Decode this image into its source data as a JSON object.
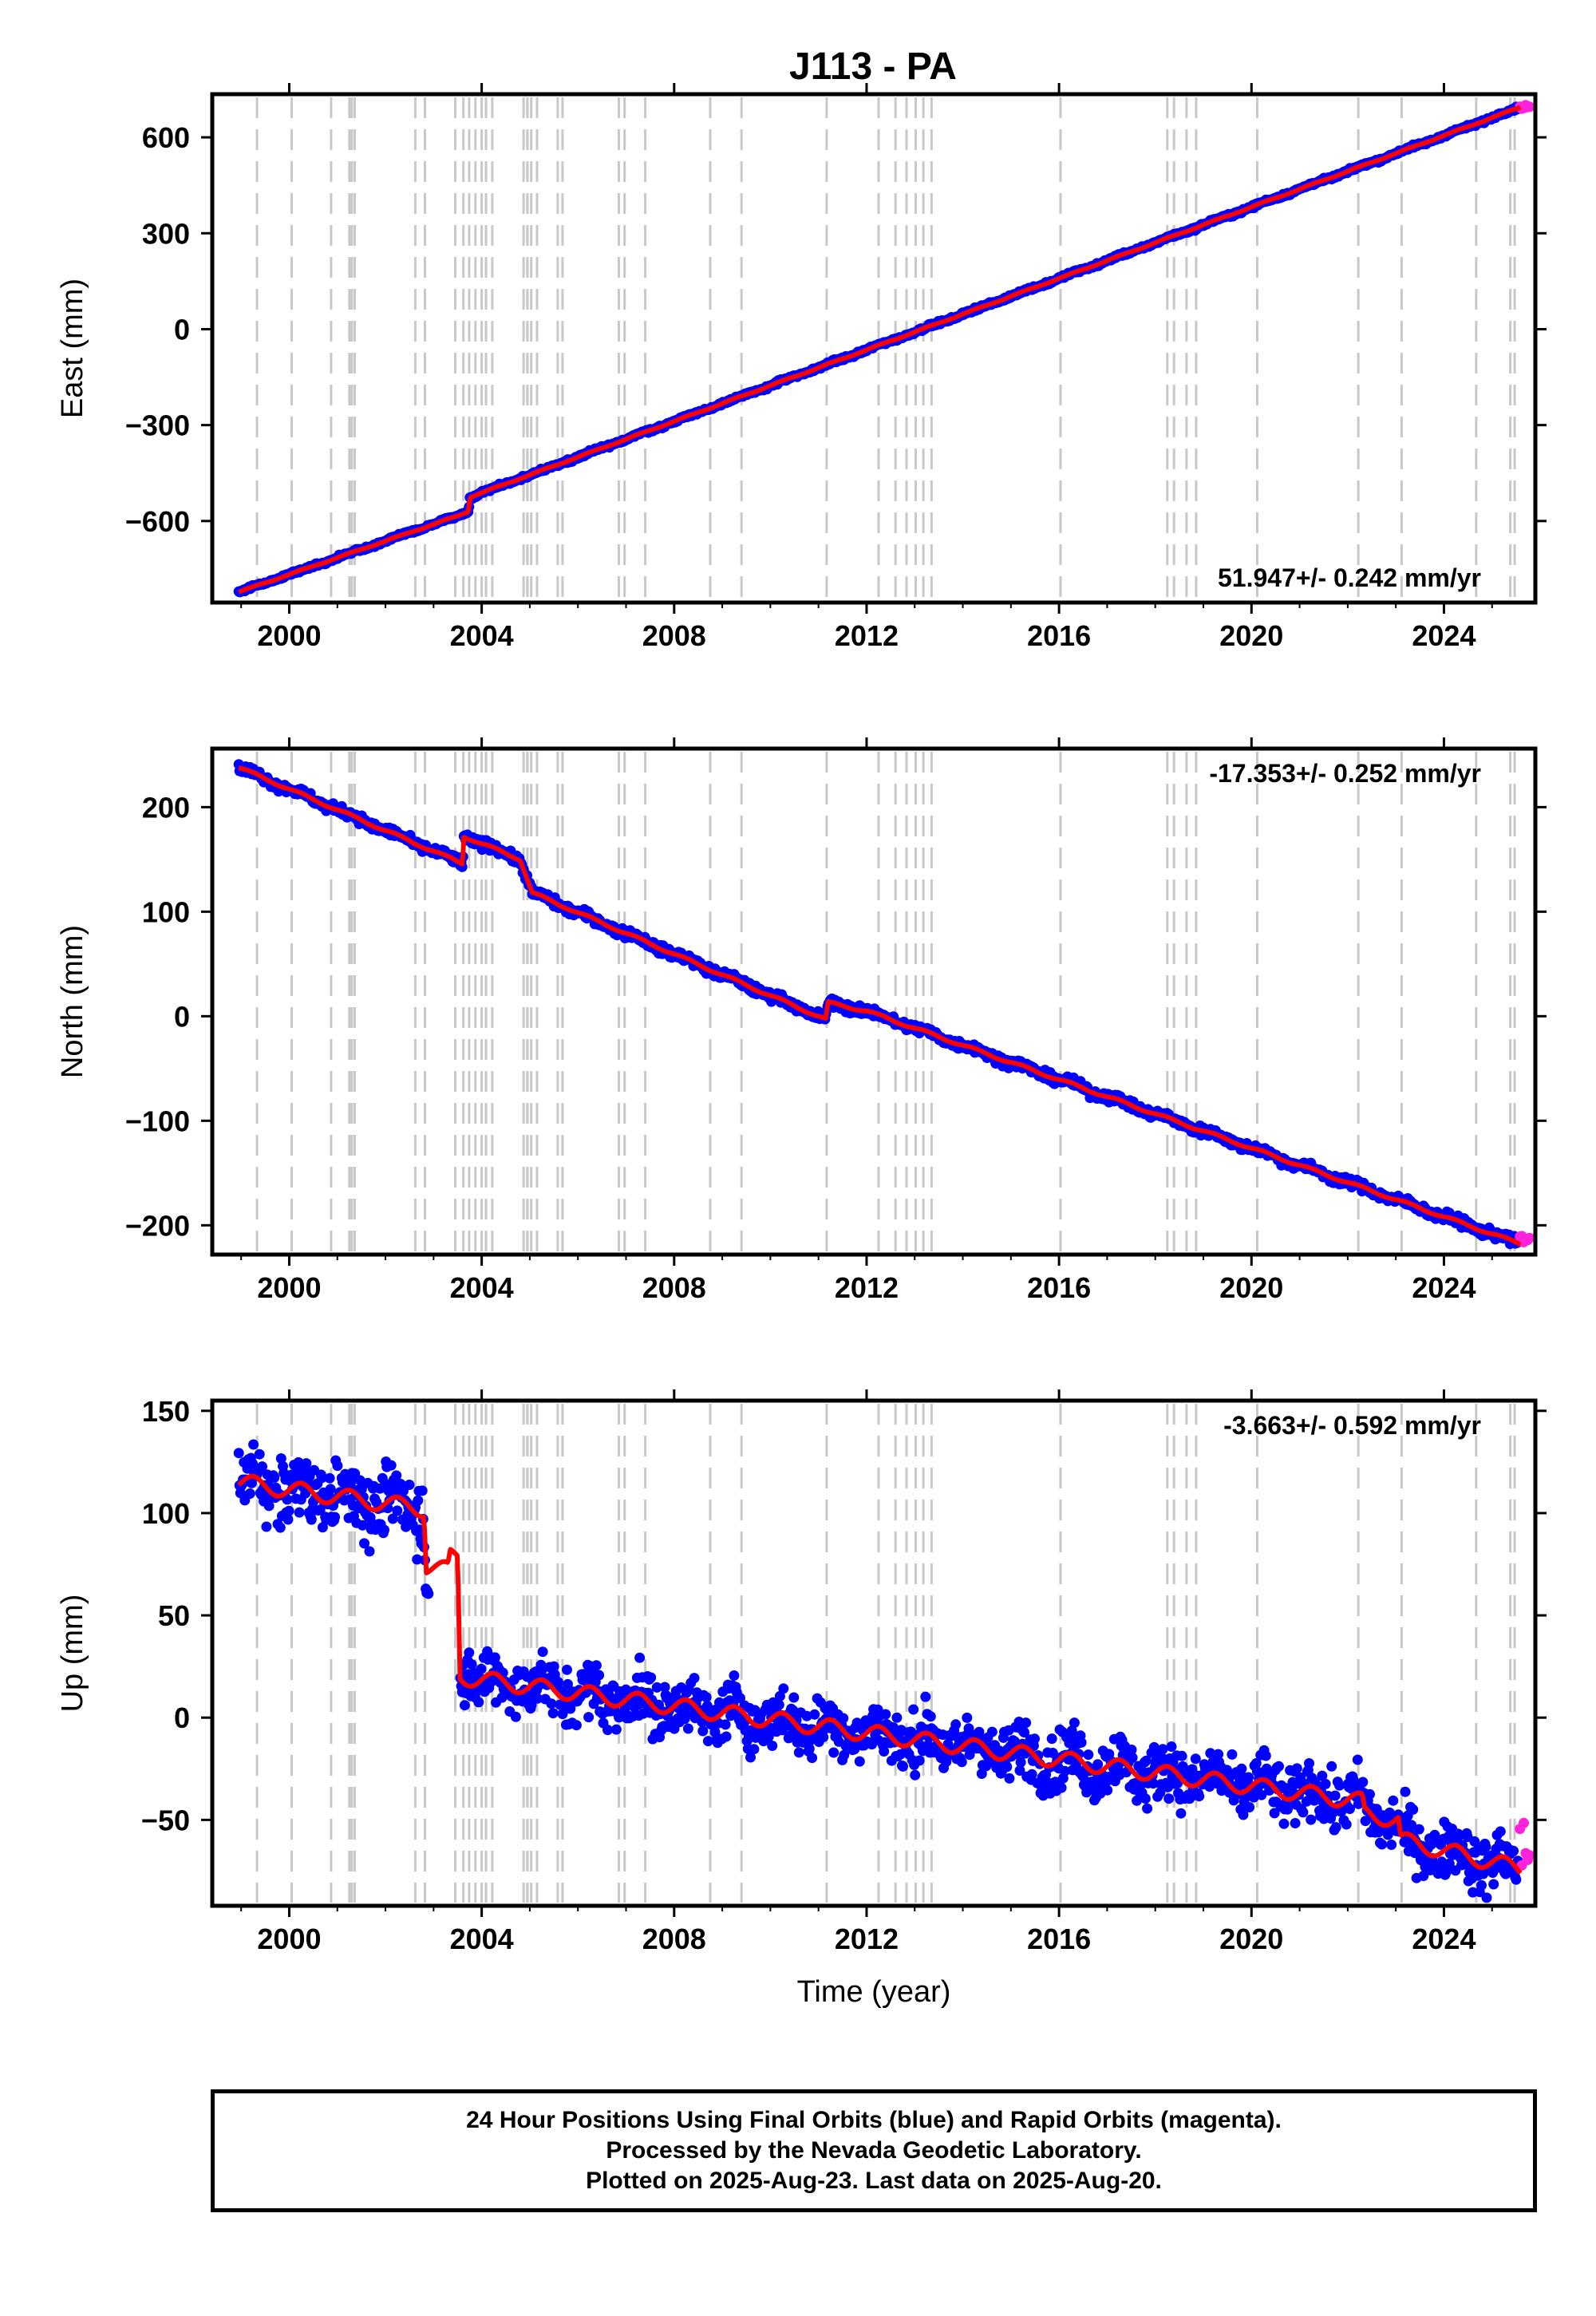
{
  "title": "J113 - PA",
  "colors": {
    "final_orbits": "#0000ff",
    "rapid_orbits": "#ff22dd",
    "model": "#ff0000",
    "event_lines": "#c8c8c8"
  },
  "event_lines_years": [
    1999.33,
    2000.05,
    2000.87,
    2001.25,
    2001.3,
    2001.36,
    2002.62,
    2002.82,
    2003.45,
    2003.62,
    2003.74,
    2003.87,
    2004.0,
    2004.09,
    2004.22,
    2004.87,
    2004.95,
    2005.03,
    2005.15,
    2005.58,
    2005.68,
    2006.85,
    2006.97,
    2007.4,
    2008.75,
    2009.4,
    2011.17,
    2012.25,
    2012.6,
    2012.83,
    2013.02,
    2013.18,
    2013.35,
    2016.03,
    2018.25,
    2018.39,
    2018.65,
    2018.85,
    2020.12,
    2022.22,
    2023.12,
    2024.67,
    2025.38,
    2025.47
  ],
  "footer": {
    "line1": "24 Hour Positions Using Final Orbits (blue) and Rapid Orbits (magenta).",
    "line2": "Processed by the Nevada Geodetic Laboratory.",
    "line3": "Plotted on 2025-Aug-23. Last data on 2025-Aug-20."
  },
  "chart_data": [
    {
      "type": "scatter",
      "ylabel": "East (mm)",
      "xlabel": "",
      "rate_label": "51.947+/- 0.242 mm/yr",
      "xlim": [
        1998.4,
        2025.9
      ],
      "ylim": [
        -855,
        735
      ],
      "xticks": [
        2000,
        2004,
        2008,
        2012,
        2016,
        2020,
        2024
      ],
      "yticks": [
        -600,
        -300,
        0,
        300,
        600
      ],
      "ytick_labels": [
        "−600",
        "−300",
        "0",
        "300",
        "600"
      ],
      "model_points": [
        [
          1998.95,
          -822
        ],
        [
          2003.5,
          -584
        ],
        [
          2003.72,
          -570
        ],
        [
          2003.76,
          -525
        ],
        [
          2025.6,
          695
        ]
      ],
      "rapid_last": 696
    },
    {
      "type": "scatter",
      "ylabel": "North (mm)",
      "xlabel": "",
      "rate_label": "-17.353+/- 0.252 mm/yr",
      "xlim": [
        1998.4,
        2025.9
      ],
      "ylim": [
        -228,
        256
      ],
      "xticks": [
        2000,
        2004,
        2008,
        2012,
        2016,
        2020,
        2024
      ],
      "yticks": [
        -200,
        -100,
        0,
        100,
        200
      ],
      "ytick_labels": [
        "−200",
        "−100",
        "0",
        "100",
        "200"
      ],
      "model_points": [
        [
          1998.95,
          238
        ],
        [
          2003.6,
          146
        ],
        [
          2003.63,
          172
        ],
        [
          2004.8,
          150
        ],
        [
          2005.05,
          118
        ],
        [
          2011.15,
          -3
        ],
        [
          2011.2,
          13
        ],
        [
          2012.0,
          5
        ],
        [
          2025.6,
          -218
        ]
      ],
      "rapid_last": -213
    },
    {
      "type": "scatter",
      "ylabel": "Up (mm)",
      "xlabel": "Time (year)",
      "rate_label": "-3.663+/- 0.592 mm/yr",
      "xlim": [
        1998.4,
        2025.9
      ],
      "ylim": [
        -92,
        155
      ],
      "xticks": [
        2000,
        2004,
        2008,
        2012,
        2016,
        2020,
        2024
      ],
      "yticks": [
        -50,
        0,
        50,
        100,
        150
      ],
      "ytick_labels": [
        "−50",
        "0",
        "50",
        "100",
        "150"
      ],
      "model_points": [
        [
          1998.95,
          115
        ],
        [
          2002.8,
          102
        ],
        [
          2002.85,
          74
        ],
        [
          2003.3,
          72
        ],
        [
          2003.35,
          79
        ],
        [
          2003.5,
          79
        ],
        [
          2003.55,
          20
        ],
        [
          2022.3,
          -41
        ],
        [
          2022.35,
          -47
        ],
        [
          2023.05,
          -50
        ],
        [
          2023.1,
          -60
        ],
        [
          2025.6,
          -74
        ]
      ],
      "rapid_last": -66
    }
  ]
}
